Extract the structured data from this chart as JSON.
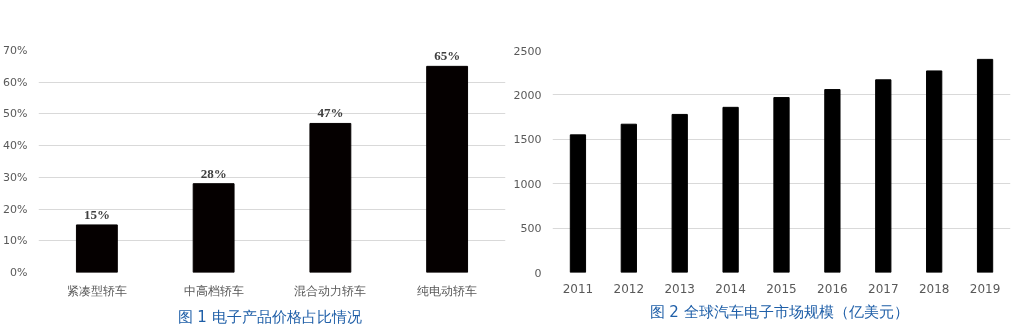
{
  "chart_data": [
    {
      "type": "bar",
      "title": "图 1  电子产品价格占比情况",
      "categories": [
        "紧凑型轿车",
        "中高档轿车",
        "混合动力轿车",
        "纯电动轿车"
      ],
      "values": [
        15,
        28,
        47,
        65
      ],
      "value_labels": [
        "15%",
        "28%",
        "47%",
        "65%"
      ],
      "color": "#050000",
      "ylim": [
        0,
        70
      ],
      "yticks": [
        {
          "value": 0,
          "label": "0%"
        },
        {
          "value": 10,
          "label": "10%"
        },
        {
          "value": 20,
          "label": "20%"
        },
        {
          "value": 30,
          "label": "30%"
        },
        {
          "value": 40,
          "label": "40%"
        },
        {
          "value": 50,
          "label": "50%"
        },
        {
          "value": 60,
          "label": "60%"
        },
        {
          "value": 70,
          "label": "70%"
        }
      ],
      "grid": "y"
    },
    {
      "type": "bar",
      "title": "图 2  全球汽车电子市场规模（亿美元）",
      "categories": [
        "2011",
        "2012",
        "2013",
        "2014",
        "2015",
        "2016",
        "2017",
        "2018",
        "2019"
      ],
      "values": [
        1550,
        1670,
        1780,
        1860,
        1970,
        2060,
        2170,
        2270,
        2400
      ],
      "color": "#000000",
      "ylim": [
        0,
        2500
      ],
      "yticks": [
        0,
        500,
        1000,
        1500,
        2000,
        2500
      ],
      "grid": "y"
    }
  ]
}
